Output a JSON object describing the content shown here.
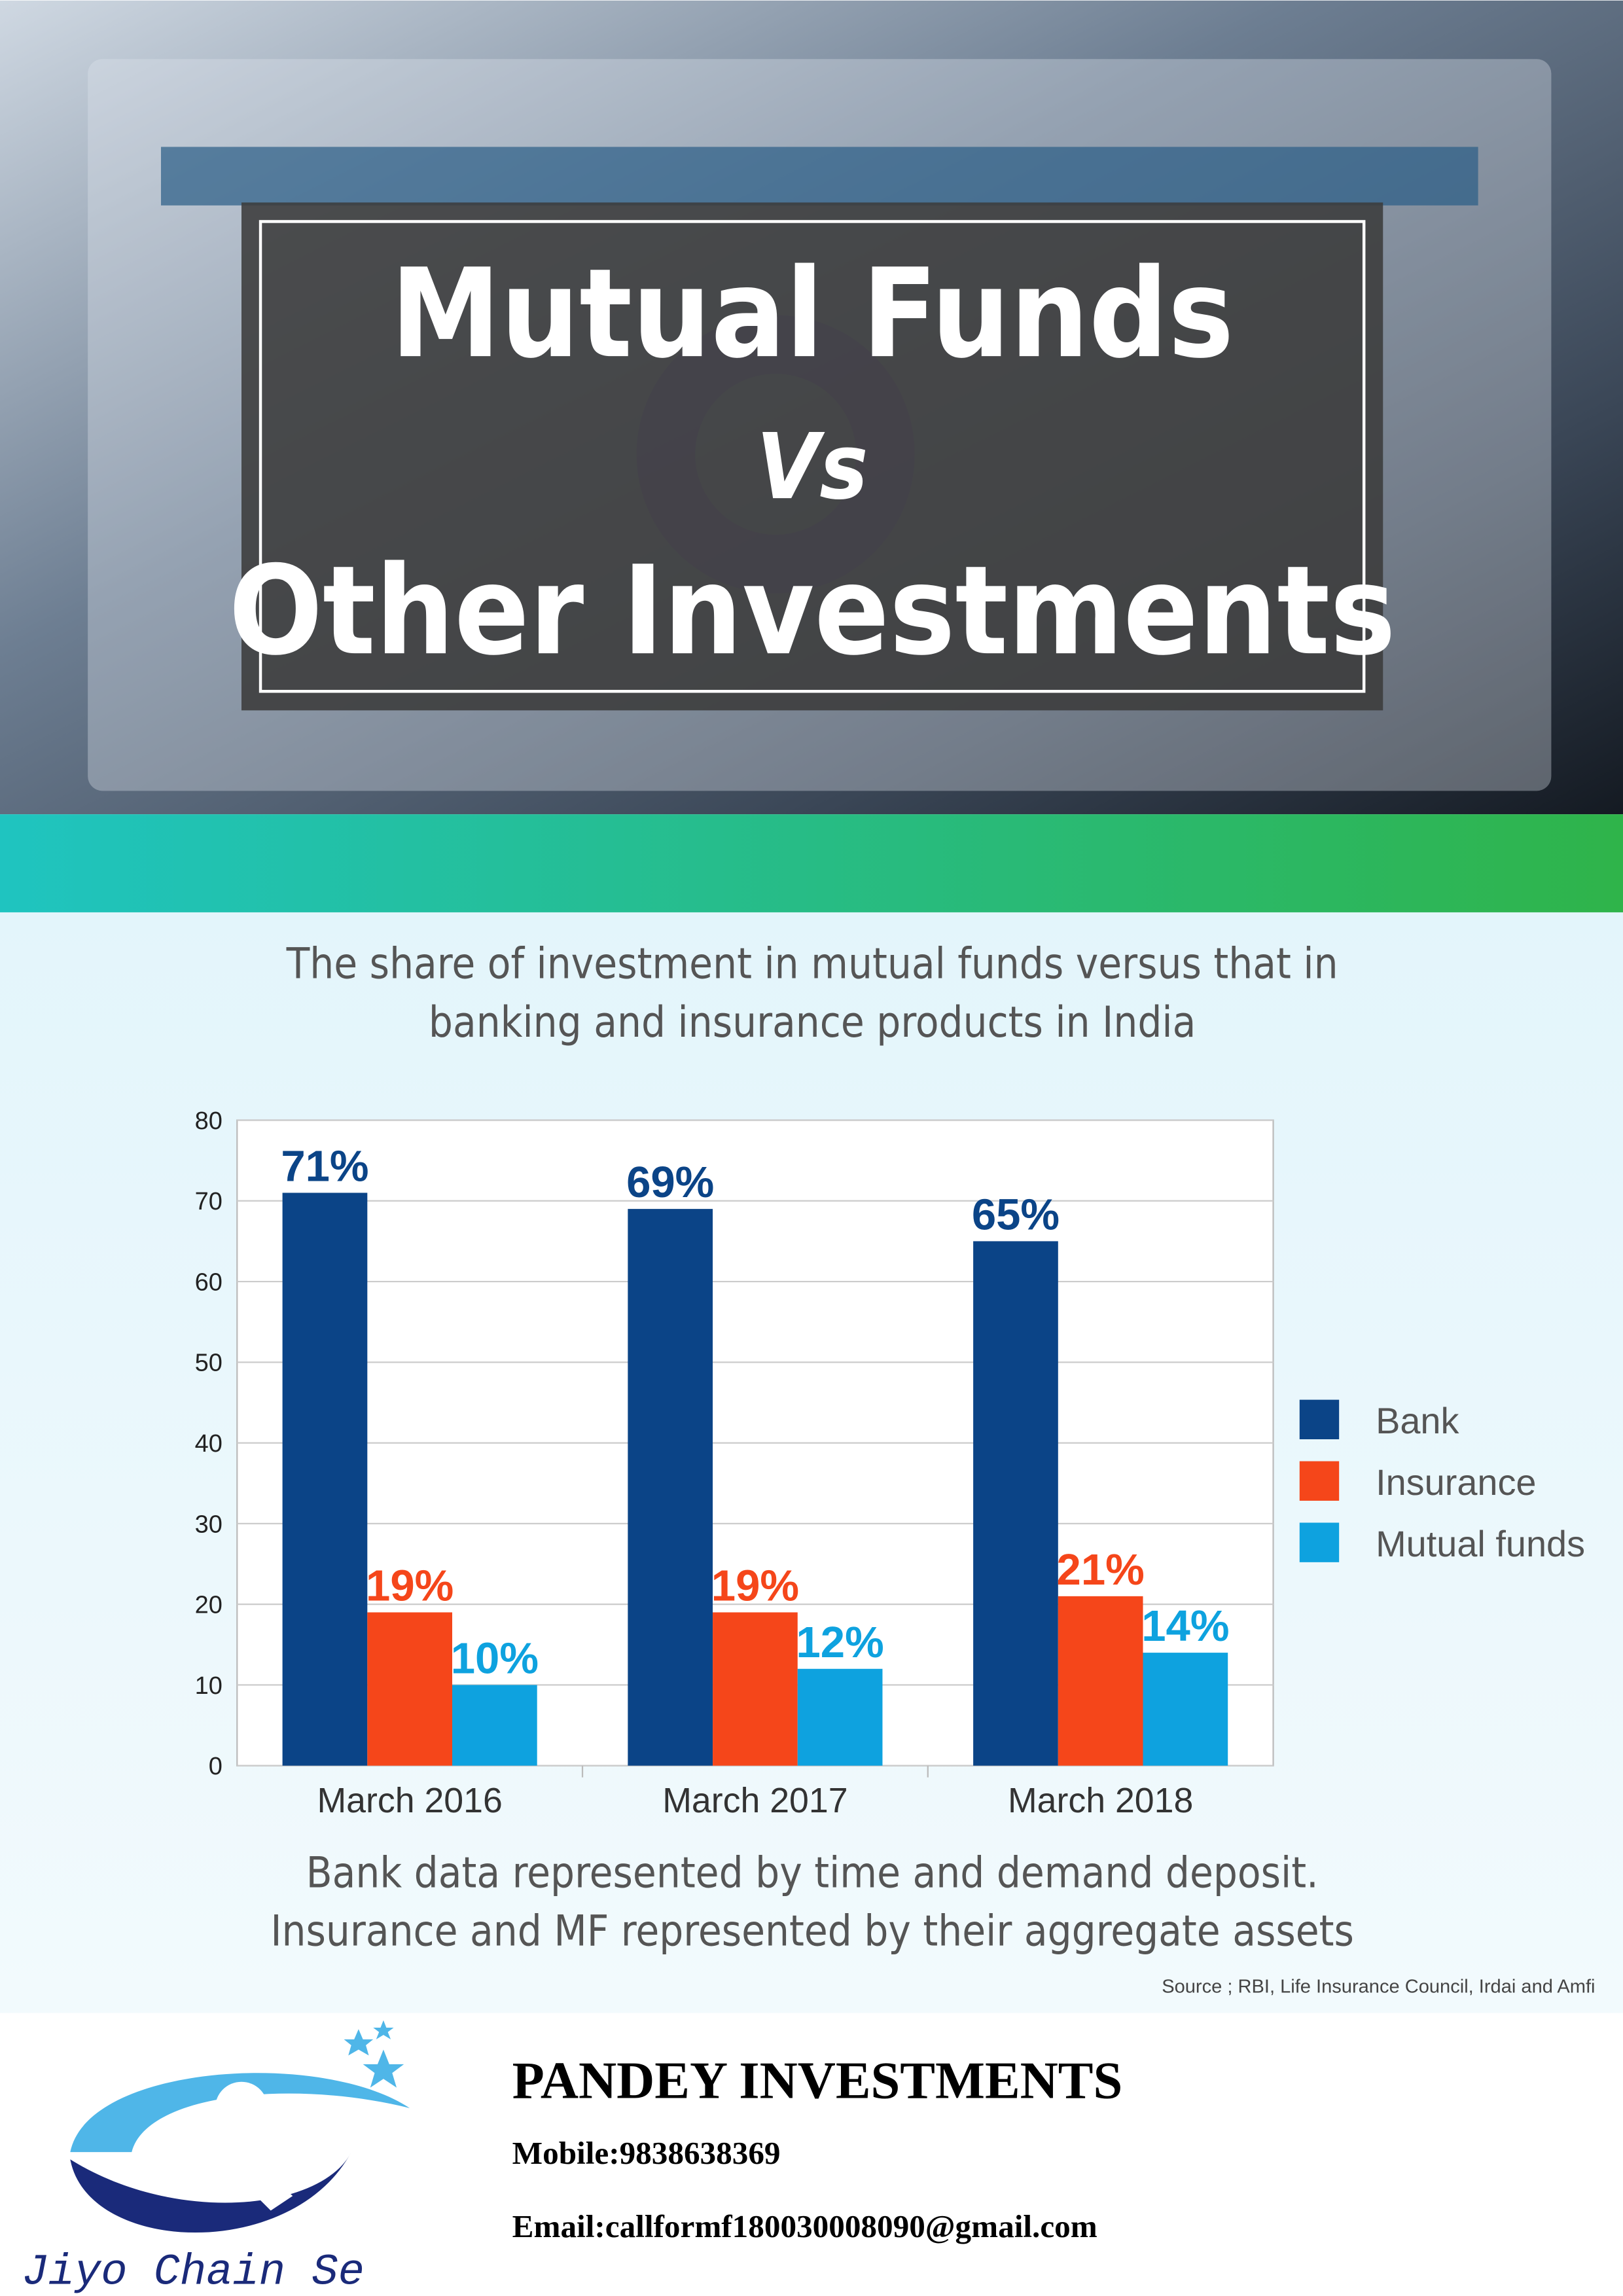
{
  "header": {
    "title_lines": [
      "Mutual Funds",
      "Vs",
      "Other Investments"
    ]
  },
  "chart_data": {
    "type": "bar",
    "title_lines": [
      "The share of investment in mutual funds versus that in",
      "banking and insurance products in India"
    ],
    "categories": [
      "March 2016",
      "March 2017",
      "March 2018"
    ],
    "series": [
      {
        "name": "Bank",
        "color": "#0b4487",
        "values": [
          71,
          69,
          65
        ],
        "value_labels": [
          "71%",
          "69%",
          "65%"
        ]
      },
      {
        "name": "Insurance",
        "color": "#f5461a",
        "values": [
          19,
          19,
          21
        ],
        "value_labels": [
          "19%",
          "19%",
          "21%"
        ]
      },
      {
        "name": "Mutual funds",
        "color": "#0ea2df",
        "values": [
          10,
          12,
          14
        ],
        "value_labels": [
          "10%",
          "12%",
          "14%"
        ]
      }
    ],
    "ylim": [
      0,
      80
    ],
    "yticks": [
      0,
      10,
      20,
      30,
      40,
      50,
      60,
      70,
      80
    ],
    "grid": true,
    "legend": "right",
    "notes": [
      "Bank data represented by time and demand deposit.",
      "Insurance and MF represented by their aggregate assets"
    ],
    "source": "Source ; RBI, Life Insurance Council, Irdai and Amfi"
  },
  "footer": {
    "company": "PANDEY INVESTMENTS",
    "mobile": "Mobile:9838638369",
    "email": "Email:callformf180030008090@gmail.com",
    "tagline": "Jiyo Chain Se"
  }
}
